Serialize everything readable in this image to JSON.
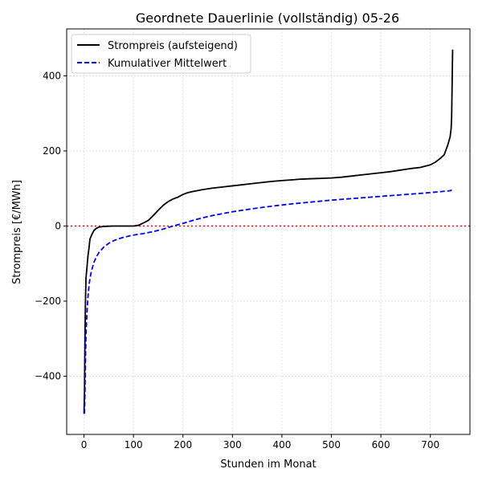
{
  "chart_data": {
    "type": "line",
    "title": "Geordnete Dauerlinie (vollständig) 05-26",
    "xlabel": "Stunden im Monat",
    "ylabel": "Strompreis [€/MWh]",
    "xlim": [
      -35,
      780
    ],
    "ylim": [
      -555,
      525
    ],
    "xticks": [
      0,
      100,
      200,
      300,
      400,
      500,
      600,
      700
    ],
    "yticks": [
      -400,
      -200,
      0,
      200,
      400
    ],
    "xtick_labels": [
      "0",
      "100",
      "200",
      "300",
      "400",
      "500",
      "600",
      "700"
    ],
    "ytick_labels": [
      "−400",
      "−200",
      "0",
      "200",
      "400"
    ],
    "grid": true,
    "legend_position": "upper-left",
    "reference_line": {
      "y": 0,
      "color": "#ff0000",
      "style": "dotted"
    },
    "series": [
      {
        "name": "Strompreis (aufsteigend)",
        "color": "#000000",
        "style": "solid",
        "points": [
          [
            0,
            -500
          ],
          [
            1,
            -440
          ],
          [
            2,
            -300
          ],
          [
            3,
            -200
          ],
          [
            4,
            -140
          ],
          [
            6,
            -110
          ],
          [
            8,
            -80
          ],
          [
            10,
            -60
          ],
          [
            12,
            -35
          ],
          [
            15,
            -25
          ],
          [
            20,
            -12
          ],
          [
            25,
            -6
          ],
          [
            30,
            -3
          ],
          [
            40,
            -1
          ],
          [
            60,
            0
          ],
          [
            80,
            0
          ],
          [
            100,
            0
          ],
          [
            110,
            2
          ],
          [
            120,
            8
          ],
          [
            130,
            15
          ],
          [
            140,
            28
          ],
          [
            150,
            42
          ],
          [
            160,
            55
          ],
          [
            170,
            65
          ],
          [
            180,
            72
          ],
          [
            190,
            77
          ],
          [
            200,
            84
          ],
          [
            210,
            89
          ],
          [
            220,
            92
          ],
          [
            240,
            97
          ],
          [
            260,
            101
          ],
          [
            280,
            104
          ],
          [
            300,
            107
          ],
          [
            320,
            110
          ],
          [
            340,
            113
          ],
          [
            360,
            116
          ],
          [
            380,
            119
          ],
          [
            400,
            121
          ],
          [
            420,
            123
          ],
          [
            440,
            125
          ],
          [
            460,
            126
          ],
          [
            480,
            127
          ],
          [
            500,
            128
          ],
          [
            520,
            130
          ],
          [
            540,
            133
          ],
          [
            560,
            136
          ],
          [
            580,
            139
          ],
          [
            600,
            142
          ],
          [
            620,
            145
          ],
          [
            640,
            149
          ],
          [
            660,
            153
          ],
          [
            680,
            156
          ],
          [
            700,
            163
          ],
          [
            710,
            170
          ],
          [
            720,
            180
          ],
          [
            728,
            190
          ],
          [
            735,
            215
          ],
          [
            740,
            238
          ],
          [
            742,
            260
          ],
          [
            743,
            290
          ],
          [
            744,
            380
          ],
          [
            745,
            470
          ]
        ]
      },
      {
        "name": "Kumulativer Mittelwert",
        "color": "#0000ff",
        "style": "dashed",
        "points": [
          [
            1,
            -500
          ],
          [
            2,
            -440
          ],
          [
            3,
            -350
          ],
          [
            4,
            -290
          ],
          [
            6,
            -230
          ],
          [
            8,
            -190
          ],
          [
            10,
            -160
          ],
          [
            12,
            -140
          ],
          [
            15,
            -120
          ],
          [
            20,
            -97
          ],
          [
            25,
            -82
          ],
          [
            30,
            -71
          ],
          [
            40,
            -56
          ],
          [
            50,
            -46
          ],
          [
            60,
            -39
          ],
          [
            70,
            -34
          ],
          [
            80,
            -30
          ],
          [
            90,
            -27
          ],
          [
            100,
            -24
          ],
          [
            120,
            -20
          ],
          [
            140,
            -15
          ],
          [
            160,
            -8
          ],
          [
            180,
            0
          ],
          [
            200,
            7
          ],
          [
            220,
            15
          ],
          [
            240,
            22
          ],
          [
            260,
            28
          ],
          [
            280,
            33
          ],
          [
            300,
            38
          ],
          [
            340,
            46
          ],
          [
            380,
            53
          ],
          [
            420,
            59
          ],
          [
            460,
            64
          ],
          [
            500,
            69
          ],
          [
            540,
            73
          ],
          [
            580,
            77
          ],
          [
            620,
            81
          ],
          [
            660,
            85
          ],
          [
            700,
            89
          ],
          [
            740,
            94
          ],
          [
            745,
            97
          ]
        ]
      }
    ]
  }
}
